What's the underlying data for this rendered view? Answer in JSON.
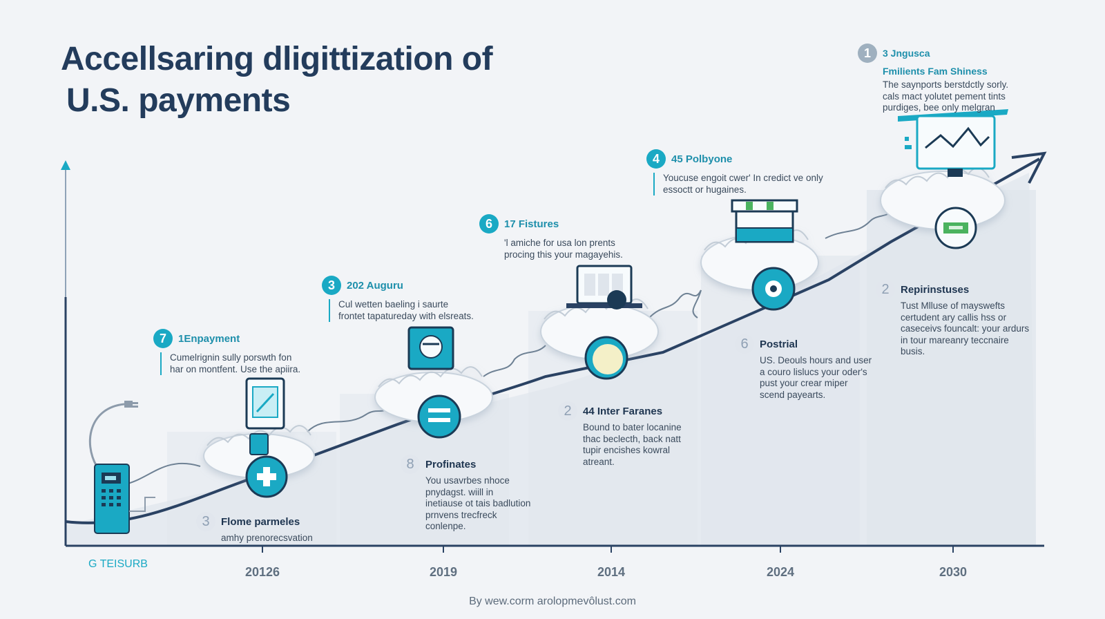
{
  "title": {
    "line1": "Accellsaring dligittization of",
    "line2": "U.S. payments"
  },
  "annotations": [
    {
      "id": "a1",
      "badge": "1",
      "heading": "3 Jngusca",
      "heading2": "Fmilients Fam Shiness",
      "text": "The saynports berstdctly sorly. cals mact yolutet pement tints purdiges, bee only melgran"
    },
    {
      "id": "a4",
      "badge": "4",
      "heading": "45 Polbyone",
      "text": "Youcuse engoit cwer' In credict ve only essoctt or hugaines."
    },
    {
      "id": "a6",
      "badge": "6",
      "heading": "17 Fistures",
      "text": "'l amiche for usa lon prents procing this your magayehis."
    },
    {
      "id": "a3",
      "badge": "3",
      "heading": "202 Auguru",
      "text": "Cul wetten baeling i saurte frontet tapatureday with elsreats."
    },
    {
      "id": "a7",
      "badge": "7",
      "heading": "1Enpayment",
      "text": "Cumelrignin sully porswth fon har on montfent. Use the apiira."
    },
    {
      "id": "a2b",
      "badge": "2",
      "heading": "Repirinstuses",
      "text": "Tust Mlluse of mayswefts certudent ary callis hss or caseceivs founcalt: your ardurs in tour mareanry teccnaire busis."
    },
    {
      "id": "a6b",
      "badge": "6",
      "heading": "Postrial",
      "text": "US. Deouls hours and user a couro lislucs your oder's pust your crear miper scend payearts."
    },
    {
      "id": "a2",
      "badge": "2",
      "heading": "44 Inter Faranes",
      "text": "Bound to bater locanine thac beclecth, back natt tupir encishes kowral atreant."
    },
    {
      "id": "a8",
      "badge": "8",
      "heading": "Profinates",
      "text": "You usavrbes nhoce pnydagst. wiill in inetiause ot tais badlution prnvens trecfreck conlenpe."
    },
    {
      "id": "a3b",
      "badge": "3",
      "heading": "Flome parmeles",
      "text": "amhy prenorecsvation"
    }
  ],
  "years": [
    "20126",
    "2019",
    "2014",
    "2024",
    "2030"
  ],
  "logo_text": "G TEISURB",
  "credit": "By wew.corm arolopmevôlust.com",
  "colors": {
    "teal": "#1aa9c4",
    "navy": "#233c5c",
    "background": "#f2f4f7",
    "band": "#e7ebf0"
  },
  "icons": [
    "payment-terminal-icon",
    "tablet-icon",
    "plus-icon",
    "mobile-wallet-icon",
    "equals-icon",
    "laptop-icon",
    "coin-icon",
    "storefront-icon",
    "target-icon",
    "monitor-chart-icon",
    "card-icon",
    "trend-arrow-icon"
  ]
}
